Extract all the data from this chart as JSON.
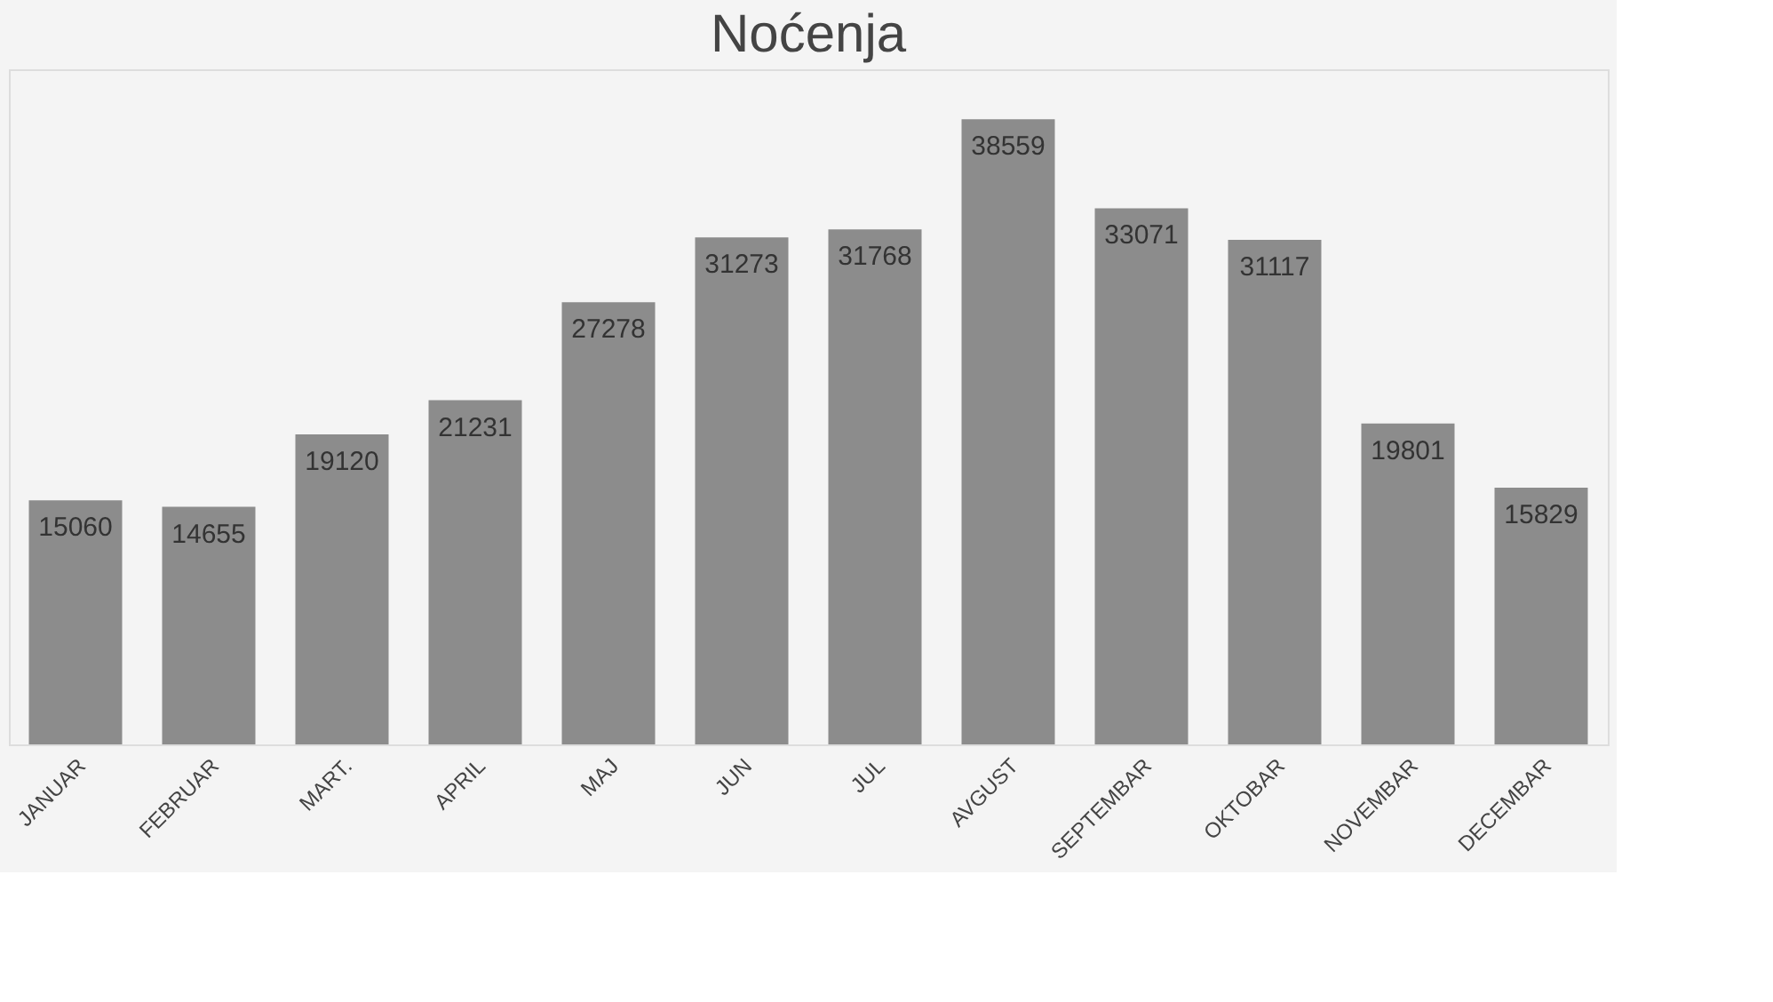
{
  "chart_data": {
    "type": "bar",
    "title": "Noćenja",
    "categories": [
      "JANUAR",
      "FEBRUAR",
      "MART.",
      "APRIL",
      "MAJ",
      "JUN",
      "JUL",
      "AVGUST",
      "SEPTEMBAR",
      "OKTOBAR",
      "NOVEMBAR",
      "DECEMBAR"
    ],
    "values": [
      15060,
      14655,
      19120,
      21231,
      27278,
      31273,
      31768,
      38559,
      33071,
      31117,
      19801,
      15829
    ],
    "color": "#8c8c8c",
    "data_labels": true
  }
}
